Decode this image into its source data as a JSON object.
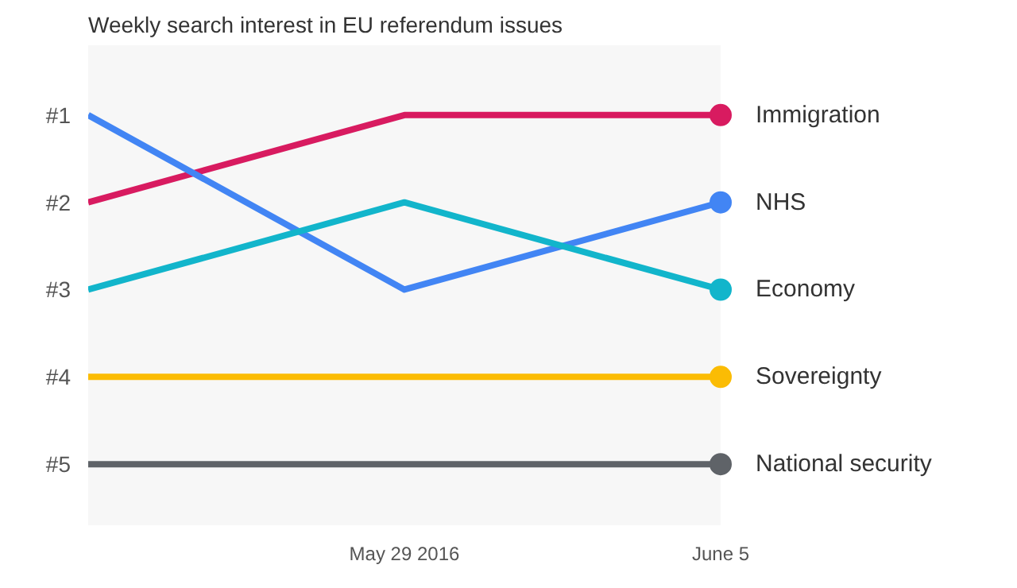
{
  "chart_data": {
    "type": "line",
    "title": "Weekly search interest in EU referendum issues",
    "x": [
      "2016-05-22",
      "2016-05-29",
      "2016-06-05"
    ],
    "series": [
      {
        "name": "Immigration",
        "color": "#d81b60",
        "values": [
          2,
          1,
          1
        ]
      },
      {
        "name": "NHS",
        "color": "#4285f4",
        "values": [
          1,
          3,
          2
        ]
      },
      {
        "name": "Economy",
        "color": "#12b5cb",
        "values": [
          3,
          2,
          3
        ]
      },
      {
        "name": "Sovereignty",
        "color": "#fbbc04",
        "values": [
          4,
          4,
          4
        ]
      },
      {
        "name": "National security",
        "color": "#5f6368",
        "values": [
          5,
          5,
          5
        ]
      }
    ],
    "xlim": [
      "2016-05-22",
      "2016-06-05"
    ],
    "xticks": [
      {
        "value": "2016-05-29",
        "label": "May 29 2016"
      },
      {
        "value": "2016-06-05",
        "label": "June 5"
      }
    ],
    "ylim": [
      5.7,
      0.2
    ],
    "yticks": [
      {
        "value": 1,
        "label": "#1"
      },
      {
        "value": 2,
        "label": "#2"
      },
      {
        "value": 3,
        "label": "#3"
      },
      {
        "value": 4,
        "label": "#4"
      },
      {
        "value": 5,
        "label": "#5"
      }
    ],
    "grid": false,
    "line_style": "solid"
  }
}
